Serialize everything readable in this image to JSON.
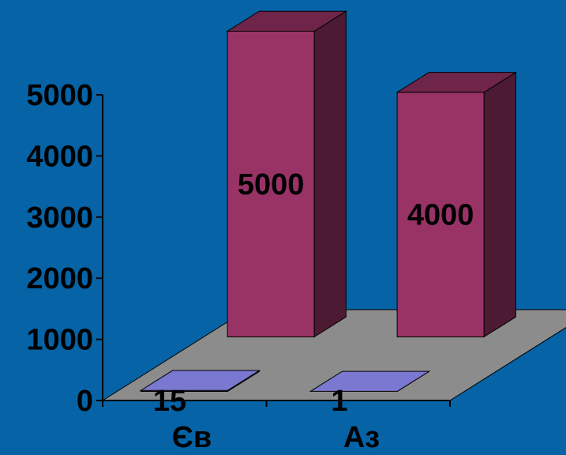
{
  "chart_data": {
    "type": "bar",
    "style": "3d-column-depth-series",
    "categories": [
      "Єв",
      "Аз"
    ],
    "series": [
      {
        "values": [
          15,
          1
        ],
        "color": "#7b78d1"
      },
      {
        "values": [
          5000,
          4000
        ],
        "color": "#993366"
      }
    ],
    "data_labels": [
      [
        "15",
        "1"
      ],
      [
        "5000",
        "4000"
      ]
    ],
    "y_ticks": [
      "0",
      "1000",
      "2000",
      "3000",
      "4000",
      "5000"
    ],
    "ylim": [
      0,
      5000
    ],
    "title": "",
    "xlabel": "",
    "ylabel": "",
    "grid": false,
    "legend": "none",
    "colors": {
      "background": "#0563a6",
      "floor": "#8c8c8c",
      "text": "#000000"
    }
  }
}
